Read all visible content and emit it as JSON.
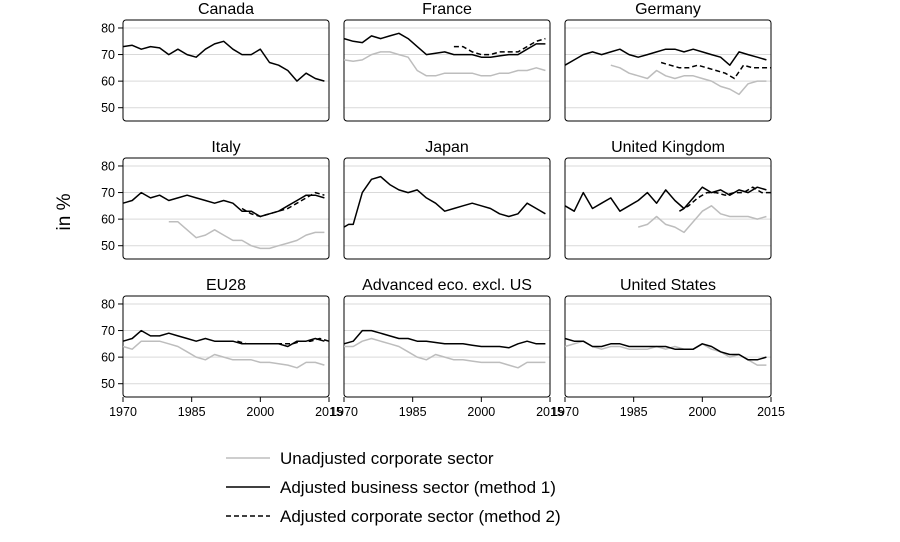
{
  "chart_data": {
    "type": "line",
    "ylabel": "in %",
    "xlim": [
      1970,
      2015
    ],
    "ylim": [
      45,
      83
    ],
    "x_ticks": [
      "1970",
      "1985",
      "2000",
      "2015"
    ],
    "y_ticks": [
      "50",
      "60",
      "70",
      "80"
    ],
    "grid": "horizontal",
    "legend_position": "bottom",
    "legend": [
      {
        "label": "Unadjusted corporate sector",
        "color": "#bdbdbd",
        "dash": "solid"
      },
      {
        "label": "Adjusted business sector (method 1)",
        "color": "#000000",
        "dash": "solid"
      },
      {
        "label": "Adjusted corporate sector (method 2)",
        "color": "#000000",
        "dash": "dashed"
      }
    ],
    "panels": [
      {
        "title": "Canada",
        "series": [
          {
            "legend_index": 1,
            "x": [
              1970,
              1972,
              1974,
              1976,
              1978,
              1980,
              1982,
              1984,
              1986,
              1988,
              1990,
              1992,
              1994,
              1996,
              1998,
              2000,
              2002,
              2004,
              2006,
              2008,
              2010,
              2012,
              2014
            ],
            "y": [
              73,
              73.5,
              72,
              73,
              72.5,
              70,
              72,
              70,
              69,
              72,
              74,
              75,
              72,
              70,
              70,
              72,
              67,
              66,
              64,
              60,
              63,
              61,
              60
            ]
          }
        ]
      },
      {
        "title": "France",
        "series": [
          {
            "legend_index": 0,
            "x": [
              1970,
              1972,
              1974,
              1976,
              1978,
              1980,
              1982,
              1984,
              1986,
              1988,
              1990,
              1992,
              1994,
              1996,
              1998,
              2000,
              2002,
              2004,
              2006,
              2008,
              2010,
              2012,
              2014
            ],
            "y": [
              68,
              67.5,
              68,
              70,
              71,
              71,
              70,
              69,
              64,
              62,
              62,
              63,
              63,
              63,
              63,
              62,
              62,
              63,
              63,
              64,
              64,
              65,
              64
            ]
          },
          {
            "legend_index": 1,
            "x": [
              1970,
              1972,
              1974,
              1976,
              1978,
              1980,
              1982,
              1984,
              1986,
              1988,
              1990,
              1992,
              1994,
              1996,
              1998,
              2000,
              2002,
              2004,
              2006,
              2008,
              2010,
              2012,
              2014
            ],
            "y": [
              76,
              75,
              74.5,
              77,
              76,
              77,
              78,
              76,
              73,
              70,
              70.5,
              71,
              70,
              70,
              70,
              69,
              69,
              69.5,
              70,
              70,
              72,
              74,
              74
            ]
          },
          {
            "legend_index": 2,
            "x": [
              1994,
              1996,
              1998,
              2000,
              2002,
              2004,
              2006,
              2008,
              2010,
              2012,
              2014
            ],
            "y": [
              73,
              73,
              71,
              70,
              70,
              71,
              71,
              71,
              73,
              75,
              76
            ]
          }
        ]
      },
      {
        "title": "Germany",
        "series": [
          {
            "legend_index": 0,
            "x": [
              1980,
              1982,
              1984,
              1986,
              1988,
              1990,
              1992,
              1994,
              1996,
              1998,
              2000,
              2002,
              2004,
              2006,
              2008,
              2010,
              2012,
              2014
            ],
            "y": [
              66,
              65,
              63,
              62,
              61,
              64,
              62,
              61,
              62,
              62,
              61,
              60,
              58,
              57,
              55,
              59,
              60,
              60
            ]
          },
          {
            "legend_index": 1,
            "x": [
              1970,
              1972,
              1974,
              1976,
              1978,
              1980,
              1982,
              1984,
              1986,
              1988,
              1990,
              1992,
              1994,
              1996,
              1998,
              2000,
              2002,
              2004,
              2006,
              2008,
              2010,
              2012,
              2014
            ],
            "y": [
              66,
              68,
              70,
              71,
              70,
              71,
              72,
              70,
              69,
              70,
              71,
              72,
              72,
              71,
              72,
              71,
              70,
              69,
              66,
              71,
              70,
              69,
              68
            ]
          },
          {
            "legend_index": 2,
            "x": [
              1991,
              1993,
              1995,
              1997,
              1999,
              2001,
              2003,
              2005,
              2007,
              2009,
              2011,
              2013,
              2015
            ],
            "y": [
              67,
              66,
              65,
              65,
              66,
              65,
              64,
              63,
              61,
              66,
              65,
              65,
              65
            ]
          }
        ]
      },
      {
        "title": "Italy",
        "series": [
          {
            "legend_index": 0,
            "x": [
              1980,
              1982,
              1984,
              1986,
              1988,
              1990,
              1992,
              1994,
              1996,
              1998,
              2000,
              2002,
              2004,
              2006,
              2008,
              2010,
              2012,
              2014
            ],
            "y": [
              59,
              59,
              56,
              53,
              54,
              56,
              54,
              52,
              52,
              50,
              49,
              49,
              50,
              51,
              52,
              54,
              55,
              55
            ]
          },
          {
            "legend_index": 1,
            "x": [
              1970,
              1972,
              1974,
              1976,
              1978,
              1980,
              1982,
              1984,
              1986,
              1988,
              1990,
              1992,
              1994,
              1996,
              1998,
              2000,
              2002,
              2004,
              2006,
              2008,
              2010,
              2012,
              2014
            ],
            "y": [
              66,
              67,
              70,
              68,
              69,
              67,
              68,
              69,
              68,
              67,
              66,
              67,
              66,
              63,
              63,
              61,
              62,
              63,
              65,
              67,
              69,
              69,
              68
            ]
          },
          {
            "legend_index": 2,
            "x": [
              1996,
              1998,
              2000,
              2002,
              2004,
              2006,
              2008,
              2010,
              2012,
              2014
            ],
            "y": [
              64,
              62,
              61,
              62,
              63,
              64,
              66,
              68,
              70,
              69
            ]
          }
        ]
      },
      {
        "title": "Japan",
        "series": [
          {
            "legend_index": 1,
            "x": [
              1970,
              1971,
              1972,
              1974,
              1976,
              1978,
              1980,
              1982,
              1984,
              1986,
              1988,
              1990,
              1992,
              1994,
              1996,
              1998,
              2000,
              2002,
              2004,
              2006,
              2008,
              2010,
              2012,
              2014
            ],
            "y": [
              57,
              58,
              58,
              70,
              75,
              76,
              73,
              71,
              70,
              71,
              68,
              66,
              63,
              64,
              65,
              66,
              65,
              64,
              62,
              61,
              62,
              66,
              64,
              62
            ]
          }
        ]
      },
      {
        "title": "United Kingdom",
        "series": [
          {
            "legend_index": 0,
            "x": [
              1986,
              1988,
              1990,
              1992,
              1994,
              1996,
              1998,
              2000,
              2002,
              2004,
              2006,
              2008,
              2010,
              2012,
              2014
            ],
            "y": [
              57,
              58,
              61,
              58,
              57,
              55,
              59,
              63,
              65,
              62,
              61,
              61,
              61,
              60,
              61
            ]
          },
          {
            "legend_index": 1,
            "x": [
              1970,
              1972,
              1974,
              1976,
              1978,
              1980,
              1982,
              1984,
              1986,
              1988,
              1990,
              1992,
              1994,
              1996,
              1998,
              2000,
              2002,
              2004,
              2006,
              2008,
              2010,
              2012,
              2014
            ],
            "y": [
              65,
              63,
              70,
              64,
              66,
              68,
              63,
              65,
              67,
              70,
              66,
              71,
              67,
              64,
              68,
              72,
              70,
              71,
              69,
              71,
              70,
              72,
              71
            ]
          },
          {
            "legend_index": 2,
            "x": [
              1995,
              1997,
              1999,
              2001,
              2003,
              2005,
              2007,
              2009,
              2011,
              2013,
              2015
            ],
            "y": [
              63,
              65,
              68,
              70,
              70,
              69,
              70,
              70,
              72,
              70,
              70
            ]
          }
        ]
      },
      {
        "title": "EU28",
        "series": [
          {
            "legend_index": 0,
            "x": [
              1970,
              1972,
              1974,
              1976,
              1978,
              1980,
              1982,
              1984,
              1986,
              1988,
              1990,
              1992,
              1994,
              1996,
              1998,
              2000,
              2002,
              2004,
              2006,
              2008,
              2010,
              2012,
              2014
            ],
            "y": [
              64,
              63,
              66,
              66,
              66,
              65,
              64,
              62,
              60,
              59,
              61,
              60,
              59,
              59,
              59,
              58,
              58,
              57.5,
              57,
              56,
              58,
              58,
              57
            ]
          },
          {
            "legend_index": 1,
            "x": [
              1970,
              1972,
              1974,
              1976,
              1978,
              1980,
              1982,
              1984,
              1986,
              1988,
              1990,
              1992,
              1994,
              1996,
              1998,
              2000,
              2002,
              2004,
              2006,
              2008,
              2010,
              2012,
              2014
            ],
            "y": [
              66,
              67,
              70,
              68,
              68,
              69,
              68,
              67,
              66,
              67,
              66,
              66,
              66,
              65,
              65,
              65,
              65,
              65,
              64,
              66,
              66,
              67,
              66
            ]
          },
          {
            "legend_index": 2,
            "x": [
              1995,
              1997,
              1999,
              2001,
              2003,
              2005,
              2007,
              2009,
              2011,
              2013,
              2015
            ],
            "y": [
              66,
              65,
              65,
              65,
              65,
              65,
              65,
              66,
              66,
              67,
              66
            ]
          }
        ]
      },
      {
        "title": "Advanced eco. excl. US",
        "series": [
          {
            "legend_index": 0,
            "x": [
              1970,
              1972,
              1974,
              1976,
              1978,
              1980,
              1982,
              1984,
              1986,
              1988,
              1990,
              1992,
              1994,
              1996,
              1998,
              2000,
              2002,
              2004,
              2006,
              2008,
              2010,
              2012,
              2014
            ],
            "y": [
              64,
              64,
              66,
              67,
              66,
              65,
              64,
              62,
              60,
              59,
              61,
              60,
              59,
              59,
              58.5,
              58,
              58,
              58,
              57,
              56,
              58,
              58,
              58
            ]
          },
          {
            "legend_index": 1,
            "x": [
              1970,
              1972,
              1974,
              1976,
              1978,
              1980,
              1982,
              1984,
              1986,
              1988,
              1990,
              1992,
              1994,
              1996,
              1998,
              2000,
              2002,
              2004,
              2006,
              2008,
              2010,
              2012,
              2014
            ],
            "y": [
              65,
              66,
              70,
              70,
              69,
              68,
              67,
              67,
              66,
              66,
              65.5,
              65,
              65,
              65,
              64.5,
              64,
              64,
              64,
              63.5,
              65,
              66,
              65,
              65
            ]
          }
        ]
      },
      {
        "title": "United States",
        "series": [
          {
            "legend_index": 0,
            "x": [
              1970,
              1972,
              1974,
              1976,
              1978,
              1980,
              1982,
              1984,
              1986,
              1988,
              1990,
              1992,
              1994,
              1996,
              1998,
              2000,
              2002,
              2004,
              2006,
              2008,
              2010,
              2012,
              2014
            ],
            "y": [
              64,
              65,
              66,
              64,
              63,
              64,
              64,
              63,
              63,
              63,
              64,
              63,
              64,
              63,
              63,
              65,
              63,
              62,
              60,
              61,
              59,
              57,
              57
            ]
          },
          {
            "legend_index": 1,
            "x": [
              1970,
              1972,
              1974,
              1976,
              1978,
              1980,
              1982,
              1984,
              1986,
              1988,
              1990,
              1992,
              1994,
              1996,
              1998,
              2000,
              2002,
              2004,
              2006,
              2008,
              2010,
              2012,
              2014
            ],
            "y": [
              67,
              66,
              66,
              64,
              64,
              65,
              65,
              64,
              64,
              64,
              64,
              64,
              63,
              63,
              63,
              65,
              64,
              62,
              61,
              61,
              59,
              59,
              60
            ]
          }
        ]
      }
    ]
  }
}
